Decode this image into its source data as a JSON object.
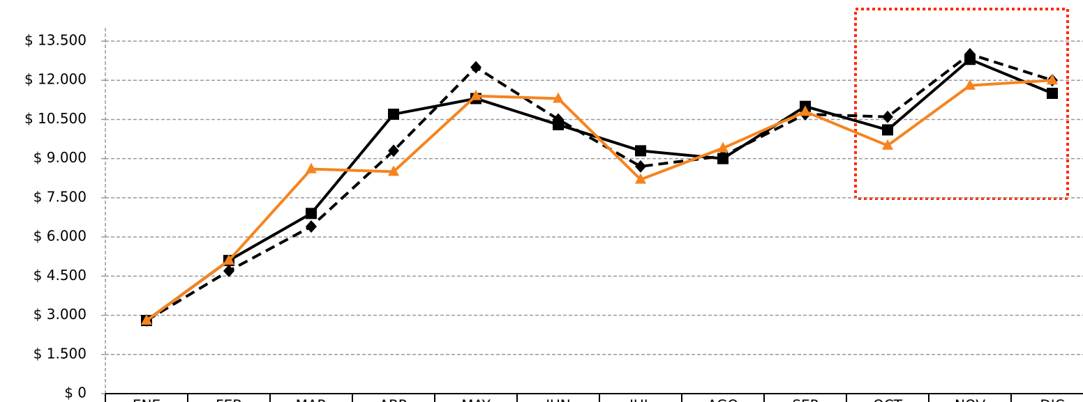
{
  "chart_data": {
    "type": "line",
    "categories": [
      "ENE",
      "FEB",
      "MAR",
      "ABR",
      "MAY",
      "JUN",
      "JUL",
      "AGO",
      "SEP",
      "OCT",
      "NOV",
      "DIC"
    ],
    "series": [
      {
        "color": "#000000",
        "dashed": false,
        "marker": "square",
        "values": [
          2800,
          5100,
          6900,
          10700,
          11300,
          10300,
          9300,
          9000,
          11000,
          10100,
          12800,
          11500
        ]
      },
      {
        "color": "#000000",
        "dashed": true,
        "marker": "diamond",
        "values": [
          2800,
          4700,
          6400,
          9300,
          12500,
          10500,
          8700,
          9100,
          10700,
          10600,
          13000,
          12000
        ]
      },
      {
        "color": "#f5841f",
        "dashed": false,
        "marker": "triangle",
        "values": [
          2800,
          5100,
          8600,
          8500,
          11400,
          11300,
          8200,
          9400,
          10800,
          9500,
          11800,
          12000
        ]
      }
    ],
    "ylim": [
      0,
      13500
    ],
    "yticks": [
      {
        "value": 0,
        "label": "$ 0"
      },
      {
        "value": 1500,
        "label": "$ 1.500"
      },
      {
        "value": 3000,
        "label": "$ 3.000"
      },
      {
        "value": 4500,
        "label": "$ 4.500"
      },
      {
        "value": 6000,
        "label": "$ 6.000"
      },
      {
        "value": 7500,
        "label": "$ 7.500"
      },
      {
        "value": 9000,
        "label": "$ 9.000"
      },
      {
        "value": 10500,
        "label": "$ 10.500"
      },
      {
        "value": 12000,
        "label": "$ 12.000"
      },
      {
        "value": 13500,
        "label": "$ 13.500"
      }
    ],
    "grid": true
  }
}
